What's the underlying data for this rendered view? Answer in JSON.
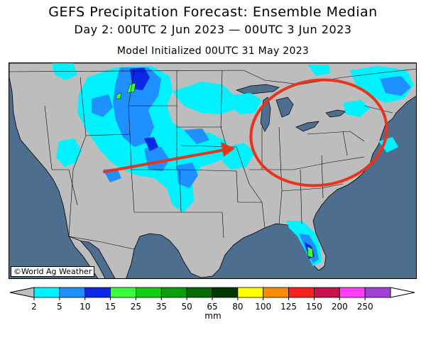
{
  "title": "GEFS Precipitation Forecast: Ensemble Median",
  "subtitle": "Day 2: 00UTC 2 Jun 2023 — 00UTC 3 Jun 2023",
  "init": "Model Initialized 00UTC 31 May 2023",
  "credit": "©World Ag Weather",
  "colors": {
    "ocean": "#4e6e8f",
    "land": "#bdbdbd",
    "border": "#000000",
    "annotation": "#e8341c"
  },
  "colorbar": {
    "units": "mm",
    "ticks": [
      "2",
      "5",
      "10",
      "15",
      "25",
      "35",
      "50",
      "65",
      "80",
      "100",
      "125",
      "150",
      "200",
      "250"
    ],
    "colors": [
      "#00f2ff",
      "#1e90ff",
      "#0a28e6",
      "#3cff3c",
      "#10d010",
      "#0a9e0a",
      "#076a07",
      "#003a00",
      "#ffff00",
      "#ff8c00",
      "#ff1e1e",
      "#c8104a",
      "#ff3cff",
      "#a040d8"
    ],
    "under_color": "#bdbdbd",
    "over_color": "#ffffff"
  }
}
